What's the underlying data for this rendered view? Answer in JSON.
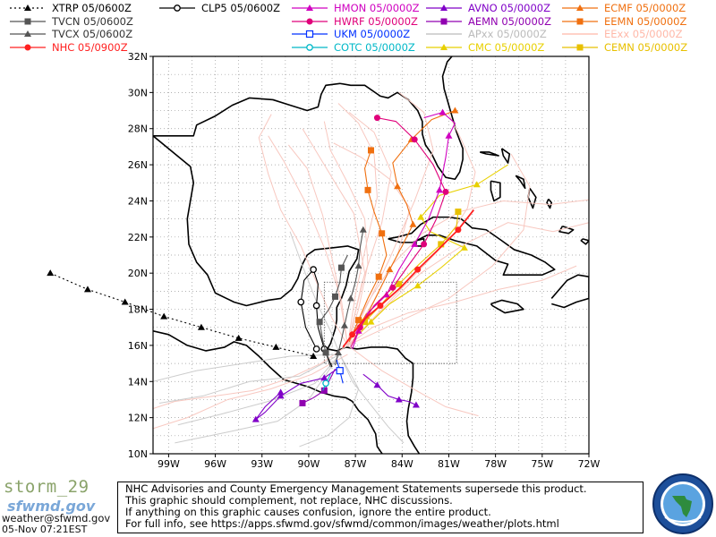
{
  "legend": [
    {
      "label": "XTRP 05/0600Z",
      "color": "#000000",
      "marker": "triangle",
      "dashed": true
    },
    {
      "label": "TVCN 05/0600Z",
      "color": "#555555",
      "marker": "square",
      "dashed": false
    },
    {
      "label": "TVCX 05/0600Z",
      "color": "#555555",
      "marker": "triangle",
      "dashed": false
    },
    {
      "label": "NHC 05/0900Z",
      "color": "#ff2020",
      "marker": "circle",
      "dashed": false
    },
    {
      "label": "CLP5 05/0600Z",
      "color": "#000000",
      "marker": "ring",
      "dashed": false
    },
    {
      "label": "HMON 05/0000Z",
      "color": "#d000c0",
      "marker": "triangle",
      "dashed": false
    },
    {
      "label": "HWRF 05/0000Z",
      "color": "#e0007a",
      "marker": "circle",
      "dashed": false
    },
    {
      "label": "UKM 05/0000Z",
      "color": "#0030ff",
      "marker": "square-open",
      "dashed": false
    },
    {
      "label": "COTC 05/0000Z",
      "color": "#00b8c8",
      "marker": "ring",
      "dashed": false
    },
    {
      "label": "AVNO 05/0000Z",
      "color": "#8000c8",
      "marker": "triangle",
      "dashed": false
    },
    {
      "label": "AEMN 05/0000Z",
      "color": "#9000b0",
      "marker": "square",
      "dashed": false
    },
    {
      "label": "APxx 05/0000Z",
      "color": "#bbbbbb",
      "marker": "none",
      "dashed": false
    },
    {
      "label": "CMC 05/0000Z",
      "color": "#e8d000",
      "marker": "triangle",
      "dashed": false
    },
    {
      "label": "ECMF 05/0000Z",
      "color": "#f07010",
      "marker": "triangle",
      "dashed": false
    },
    {
      "label": "EEMN 05/0000Z",
      "color": "#f07010",
      "marker": "square",
      "dashed": false
    },
    {
      "label": "EExx 05/0000Z",
      "color": "#ffb8a8",
      "marker": "none",
      "dashed": false
    },
    {
      "label": "CEMN 05/0000Z",
      "color": "#e8c000",
      "marker": "square",
      "dashed": false
    }
  ],
  "axes": {
    "lat_ticks": [
      "32N",
      "30N",
      "28N",
      "26N",
      "24N",
      "22N",
      "20N",
      "18N",
      "16N",
      "14N",
      "12N",
      "10N"
    ],
    "lon_ticks": [
      "99W",
      "96W",
      "93W",
      "90W",
      "87W",
      "84W",
      "81W",
      "78W",
      "75W",
      "72W"
    ],
    "lon_range": [
      -100,
      -72
    ],
    "lat_range": [
      10,
      32
    ]
  },
  "tracks": {
    "XTRP": [
      [
        -106.6,
        20.0
      ],
      [
        -104.2,
        19.1
      ],
      [
        -101.8,
        18.4
      ],
      [
        -99.3,
        17.6
      ],
      [
        -96.9,
        17.0
      ],
      [
        -94.5,
        16.4
      ],
      [
        -92.1,
        15.9
      ],
      [
        -89.7,
        15.4
      ]
    ],
    "TVCN": [
      [
        -88.6,
        14.8
      ],
      [
        -88.9,
        15.6
      ],
      [
        -89.1,
        16.3
      ],
      [
        -89.3,
        17.3
      ],
      [
        -88.7,
        18.0
      ],
      [
        -88.3,
        18.7
      ],
      [
        -88.0,
        19.5
      ],
      [
        -87.9,
        20.3
      ],
      [
        -87.5,
        21.0
      ]
    ],
    "TVCX": [
      [
        -88.3,
        14.9
      ],
      [
        -88.1,
        15.6
      ],
      [
        -87.9,
        16.3
      ],
      [
        -87.7,
        17.1
      ],
      [
        -87.5,
        17.9
      ],
      [
        -87.3,
        18.6
      ],
      [
        -87.0,
        19.5
      ],
      [
        -86.8,
        20.4
      ],
      [
        -86.7,
        21.4
      ],
      [
        -86.5,
        22.4
      ]
    ],
    "NHC": [
      [
        -87.8,
        15.9
      ],
      [
        -87.2,
        16.6
      ],
      [
        -86.5,
        17.4
      ],
      [
        -85.4,
        18.2
      ],
      [
        -84.1,
        19.2
      ],
      [
        -83.0,
        20.2
      ],
      [
        -81.8,
        21.2
      ],
      [
        -80.4,
        22.4
      ],
      [
        -79.4,
        23.5
      ]
    ],
    "CLP5": [
      [
        -88.5,
        14.8
      ],
      [
        -89.0,
        15.8
      ],
      [
        -89.4,
        17.0
      ],
      [
        -89.5,
        18.2
      ],
      [
        -89.4,
        19.4
      ],
      [
        -89.7,
        20.2
      ],
      [
        -90.3,
        19.6
      ],
      [
        -90.5,
        18.4
      ],
      [
        -90.2,
        17.0
      ],
      [
        -89.5,
        15.8
      ]
    ],
    "HMON": [
      [
        -87.2,
        15.8
      ],
      [
        -86.8,
        16.8
      ],
      [
        -86.2,
        17.8
      ],
      [
        -85.0,
        18.8
      ],
      [
        -84.2,
        20.2
      ],
      [
        -83.2,
        21.6
      ],
      [
        -82.3,
        23.0
      ],
      [
        -81.6,
        24.6
      ],
      [
        -81.2,
        26.4
      ],
      [
        -81.0,
        27.6
      ],
      [
        -80.6,
        28.3
      ],
      [
        -81.4,
        28.9
      ],
      [
        -82.6,
        28.6
      ]
    ],
    "HWRF": [
      [
        -87.3,
        15.9
      ],
      [
        -86.7,
        17.0
      ],
      [
        -85.8,
        18.2
      ],
      [
        -84.6,
        19.2
      ],
      [
        -83.7,
        20.3
      ],
      [
        -82.6,
        21.6
      ],
      [
        -81.8,
        23.0
      ],
      [
        -81.2,
        24.5
      ],
      [
        -82.0,
        26.0
      ],
      [
        -83.2,
        27.4
      ],
      [
        -84.4,
        28.4
      ],
      [
        -85.6,
        28.6
      ]
    ],
    "UKM": [
      [
        -88.2,
        15.2
      ],
      [
        -88.0,
        14.6
      ],
      [
        -87.8,
        13.9
      ]
    ],
    "COTC": [
      [
        -88.6,
        14.4
      ],
      [
        -88.9,
        13.9
      ],
      [
        -89.1,
        13.5
      ]
    ],
    "AVNO": [
      [
        -88.0,
        14.8
      ],
      [
        -89.0,
        14.2
      ],
      [
        -90.5,
        13.9
      ],
      [
        -91.8,
        13.2
      ],
      [
        -92.8,
        12.3
      ],
      [
        -93.4,
        11.9
      ],
      [
        -92.8,
        12.6
      ],
      [
        -91.8,
        13.4
      ]
    ],
    "AVNO2": [
      [
        -86.5,
        14.4
      ],
      [
        -85.6,
        13.8
      ],
      [
        -84.9,
        13.2
      ],
      [
        -84.2,
        13.0
      ],
      [
        -83.6,
        12.9
      ],
      [
        -83.1,
        12.7
      ]
    ],
    "AEMN": [
      [
        -88.3,
        14.7
      ],
      [
        -89.0,
        13.5
      ],
      [
        -89.7,
        13.1
      ],
      [
        -90.4,
        12.8
      ]
    ],
    "CMC": [
      [
        -86.8,
        16.6
      ],
      [
        -86.0,
        17.3
      ],
      [
        -84.8,
        18.3
      ],
      [
        -83.0,
        19.3
      ],
      [
        -81.5,
        20.3
      ],
      [
        -80.0,
        21.4
      ],
      [
        -82.2,
        22.3
      ],
      [
        -82.8,
        23.1
      ],
      [
        -81.6,
        24.3
      ],
      [
        -79.2,
        24.9
      ],
      [
        -77.2,
        26.0
      ]
    ],
    "ECMF": [
      [
        -87.0,
        16.4
      ],
      [
        -86.3,
        17.6
      ],
      [
        -85.6,
        18.8
      ],
      [
        -84.8,
        20.2
      ],
      [
        -84.0,
        21.5
      ],
      [
        -83.3,
        22.7
      ],
      [
        -83.7,
        23.8
      ],
      [
        -84.3,
        24.8
      ],
      [
        -84.6,
        26.1
      ],
      [
        -83.4,
        27.4
      ],
      [
        -82.1,
        28.5
      ],
      [
        -80.6,
        29.0
      ]
    ],
    "EEMN": [
      [
        -87.4,
        16.2
      ],
      [
        -86.8,
        17.4
      ],
      [
        -86.2,
        18.6
      ],
      [
        -85.5,
        19.8
      ],
      [
        -85.0,
        21.0
      ],
      [
        -85.3,
        22.2
      ],
      [
        -85.8,
        23.4
      ],
      [
        -86.2,
        24.6
      ],
      [
        -86.4,
        25.8
      ],
      [
        -86.0,
        26.8
      ]
    ],
    "CEMN": [
      [
        -87.1,
        16.3
      ],
      [
        -86.4,
        17.3
      ],
      [
        -85.3,
        18.3
      ],
      [
        -84.2,
        19.4
      ],
      [
        -82.9,
        20.5
      ],
      [
        -81.5,
        21.6
      ],
      [
        -80.5,
        22.6
      ],
      [
        -80.4,
        23.4
      ]
    ]
  },
  "footer": {
    "storm": "storm_29",
    "logo": "sfwmd.gov",
    "contact": "weather@sfwmd.gov",
    "timestamp": "05-Nov 07:21EST",
    "disclaimer": [
      "NHC Advisories and County Emergency Management Statements supersede this product.",
      "This graphic should complement, not replace, NHC discussions.",
      "If anything on this graphic causes confusion, ignore the entire product.",
      "For full info, see  https://apps.sfwmd.gov/sfwmd/common/images/weather/plots.html"
    ]
  }
}
